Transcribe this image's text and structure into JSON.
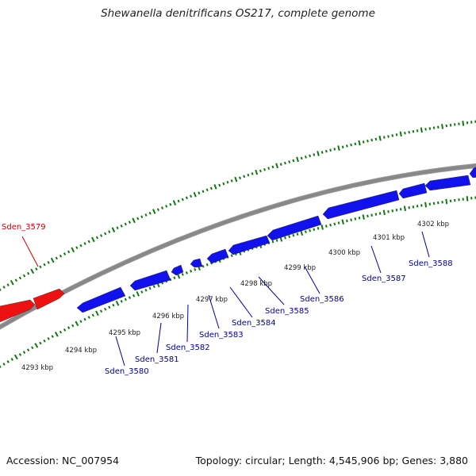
{
  "title": "Shewanella denitrificans OS217, complete genome",
  "accession": "Accession: NC_007954",
  "summary": "Topology: circular; Length: 4,545,906 bp; Genes: 3,880",
  "colors": {
    "forward_gene": "#ee1111",
    "reverse_gene": "#1111ee",
    "forward_label": "#cc0000",
    "reverse_label": "#000099",
    "scale_ticks": "#117711",
    "backbone": "#888888"
  },
  "scale_labels": [
    "4293 kbp",
    "4294 kbp",
    "4295 kbp",
    "4296 kbp",
    "4297 kbp",
    "4298 kbp",
    "4299 kbp",
    "4300 kbp",
    "4301 kbp",
    "4302 kbp"
  ],
  "genes": [
    {
      "name": "Sden_3579",
      "strand": "+"
    },
    {
      "name": "Sden_3580",
      "strand": "-"
    },
    {
      "name": "Sden_3581",
      "strand": "-"
    },
    {
      "name": "Sden_3582",
      "strand": "-"
    },
    {
      "name": "Sden_3583",
      "strand": "-"
    },
    {
      "name": "Sden_3584",
      "strand": "-"
    },
    {
      "name": "Sden_3585",
      "strand": "-"
    },
    {
      "name": "Sden_3586",
      "strand": "-"
    },
    {
      "name": "Sden_3587",
      "strand": "-"
    },
    {
      "name": "Sden_3588",
      "strand": "-"
    }
  ]
}
